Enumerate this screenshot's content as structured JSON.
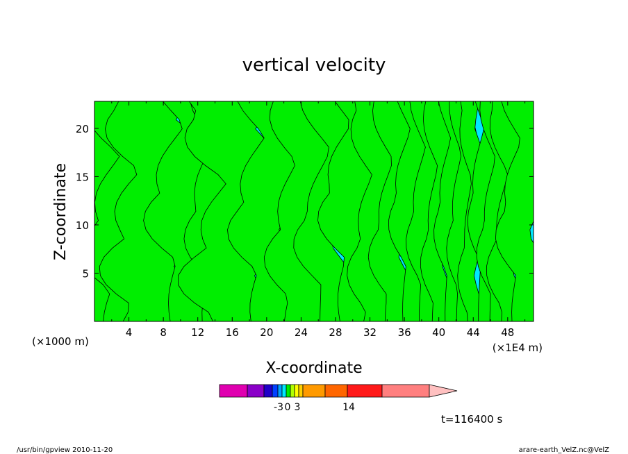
{
  "chart_data": {
    "type": "heatmap",
    "title": "vertical velocity",
    "xlabel": "X-coordinate",
    "ylabel": "Z-coordinate",
    "x_unit_left": "(×1000 m)",
    "x_unit_right": "(×1E4 m)",
    "xlim": [
      0,
      51
    ],
    "ylim": [
      0,
      22.8
    ],
    "x_ticks": [
      4,
      8,
      12,
      16,
      20,
      24,
      28,
      32,
      36,
      40,
      44,
      48
    ],
    "y_ticks": [
      5,
      10,
      15,
      20
    ],
    "contour_fill_colors": {
      "negative": "#00e8ff",
      "positive": "#00ee00"
    },
    "colorbar": {
      "colors": [
        "#e000b0",
        "#8a00c8",
        "#2000c8",
        "#0040ff",
        "#00a0ff",
        "#00e8ff",
        "#00ee00",
        "#b0ff00",
        "#ffff00",
        "#ffd000",
        "#ff9a00",
        "#ff6600",
        "#ff1a1a",
        "#ff7f7f",
        "#ffc0c0"
      ],
      "tick_labels": [
        "-3",
        "0",
        "3",
        "14"
      ]
    },
    "time_label": "t=116400 s"
  },
  "footer": {
    "program": "/usr/bin/gpview   2010-11-20",
    "source": "arare-earth_VelZ.nc@VelZ"
  }
}
